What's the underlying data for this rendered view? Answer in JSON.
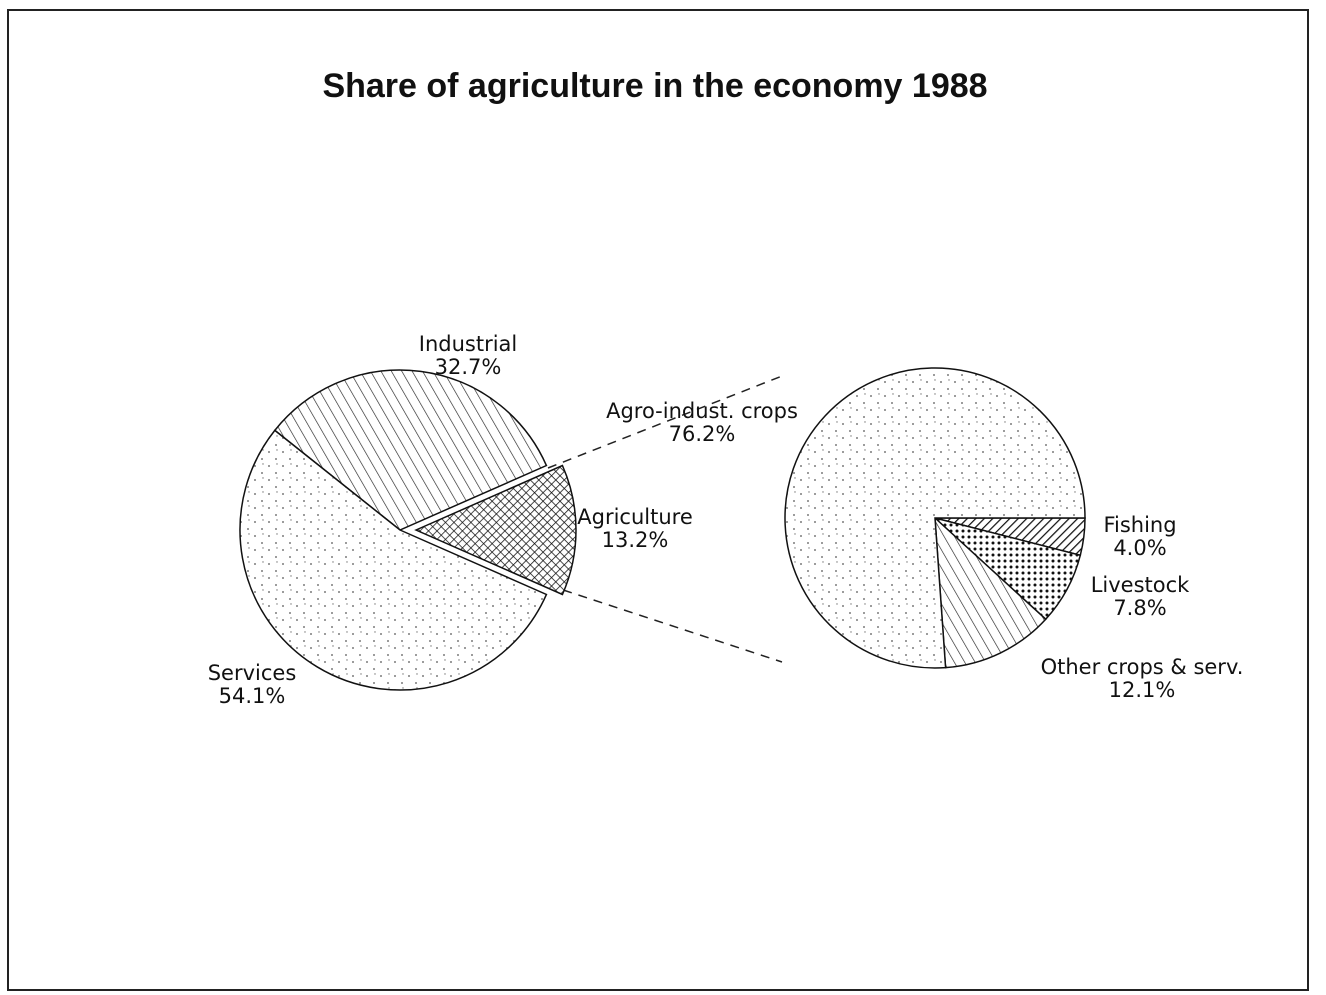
{
  "chart_data": [
    {
      "type": "pie",
      "title": "Share of agriculture in the economy 1988",
      "categories": [
        "Industrial",
        "Agriculture",
        "Services"
      ],
      "values": [
        32.7,
        13.2,
        54.1
      ],
      "value_labels": [
        "32.7%",
        "13.2%",
        "54.1%"
      ]
    },
    {
      "type": "pie",
      "categories": [
        "Agro-indust. crops",
        "Fishing",
        "Livestock",
        "Other crops & serv."
      ],
      "values": [
        76.2,
        4.0,
        7.8,
        12.1
      ],
      "value_labels": [
        "76.2%",
        "4.0%",
        "7.8%",
        "12.1%"
      ]
    }
  ]
}
